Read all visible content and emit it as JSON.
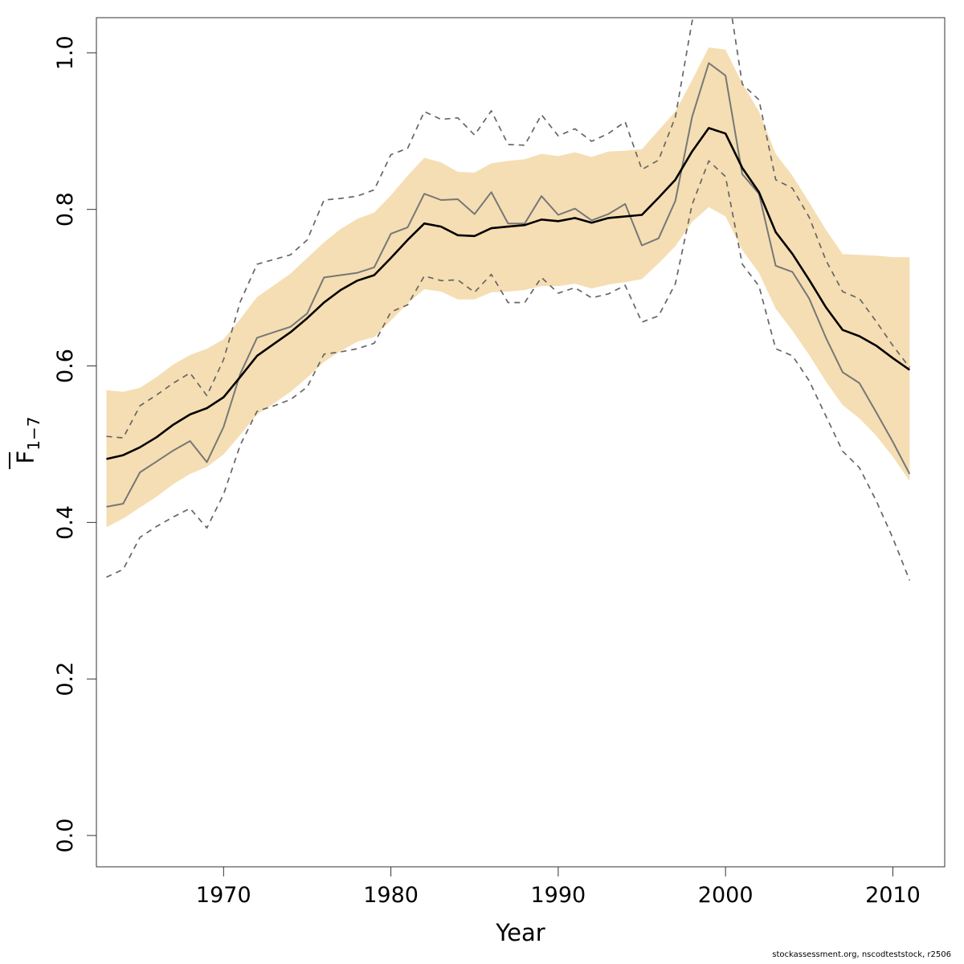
{
  "chart_data": {
    "type": "line",
    "title": "",
    "xlabel": "Year",
    "ylabel": {
      "main": "F",
      "sub": "1−7"
    },
    "xlim": [
      1962.4,
      2013.1
    ],
    "ylim": [
      -0.04,
      1.045
    ],
    "xticks": [
      1970,
      1980,
      1990,
      2000,
      2010
    ],
    "yticks": [
      0.0,
      0.2,
      0.4,
      0.6,
      0.8,
      1.0
    ],
    "xtick_labels": [
      "1970",
      "1980",
      "1990",
      "2000",
      "2010"
    ],
    "ytick_labels": [
      "0.0",
      "0.2",
      "0.4",
      "0.6",
      "0.8",
      "1.0"
    ],
    "grid": false,
    "colors": {
      "band": "#f5deb3",
      "estimate": "#000000",
      "retro": "#777777",
      "retro_ci": "#666666"
    },
    "x": [
      1963,
      1964,
      1965,
      1966,
      1967,
      1968,
      1969,
      1970,
      1971,
      1972,
      1973,
      1974,
      1975,
      1976,
      1977,
      1978,
      1979,
      1980,
      1981,
      1982,
      1983,
      1984,
      1985,
      1986,
      1987,
      1988,
      1989,
      1990,
      1991,
      1992,
      1993,
      1994,
      1995,
      1996,
      1997,
      1998,
      1999,
      2000,
      2001,
      2002,
      2003,
      2004,
      2005,
      2006,
      2007,
      2008,
      2009,
      2010,
      2011
    ],
    "series": [
      {
        "role": "estimate",
        "values": [
          0.481,
          0.486,
          0.496,
          0.509,
          0.525,
          0.538,
          0.546,
          0.56,
          0.586,
          0.613,
          0.628,
          0.643,
          0.661,
          0.681,
          0.697,
          0.709,
          0.716,
          0.738,
          0.761,
          0.782,
          0.778,
          0.767,
          0.766,
          0.776,
          0.778,
          0.78,
          0.787,
          0.785,
          0.789,
          0.783,
          0.789,
          0.791,
          0.793,
          0.815,
          0.838,
          0.874,
          0.904,
          0.897,
          0.853,
          0.822,
          0.771,
          0.743,
          0.71,
          0.675,
          0.646,
          0.638,
          0.626,
          0.61,
          0.595
        ]
      },
      {
        "role": "ci_upper",
        "values": [
          0.569,
          0.567,
          0.572,
          0.586,
          0.602,
          0.614,
          0.622,
          0.634,
          0.66,
          0.688,
          0.703,
          0.718,
          0.738,
          0.758,
          0.775,
          0.788,
          0.796,
          0.818,
          0.843,
          0.866,
          0.86,
          0.848,
          0.847,
          0.859,
          0.862,
          0.864,
          0.871,
          0.868,
          0.873,
          0.867,
          0.874,
          0.875,
          0.877,
          0.901,
          0.925,
          0.965,
          1.007,
          1.004,
          0.961,
          0.925,
          0.871,
          0.843,
          0.809,
          0.774,
          0.743,
          0.742,
          0.741,
          0.739,
          0.739
        ]
      },
      {
        "role": "ci_lower",
        "values": [
          0.394,
          0.405,
          0.419,
          0.433,
          0.449,
          0.462,
          0.471,
          0.487,
          0.512,
          0.538,
          0.552,
          0.567,
          0.585,
          0.605,
          0.619,
          0.631,
          0.637,
          0.658,
          0.68,
          0.698,
          0.695,
          0.685,
          0.685,
          0.694,
          0.695,
          0.697,
          0.702,
          0.702,
          0.705,
          0.699,
          0.704,
          0.707,
          0.711,
          0.731,
          0.753,
          0.784,
          0.803,
          0.791,
          0.748,
          0.719,
          0.673,
          0.645,
          0.614,
          0.58,
          0.55,
          0.533,
          0.511,
          0.484,
          0.453
        ]
      },
      {
        "role": "retro",
        "values": [
          0.42,
          0.424,
          0.464,
          0.478,
          0.492,
          0.504,
          0.477,
          0.522,
          0.59,
          0.636,
          0.643,
          0.65,
          0.667,
          0.713,
          0.716,
          0.719,
          0.726,
          0.769,
          0.777,
          0.82,
          0.812,
          0.813,
          0.794,
          0.822,
          0.782,
          0.782,
          0.817,
          0.793,
          0.801,
          0.786,
          0.794,
          0.807,
          0.754,
          0.763,
          0.811,
          0.918,
          0.987,
          0.971,
          0.845,
          0.82,
          0.728,
          0.72,
          0.686,
          0.636,
          0.592,
          0.578,
          0.541,
          0.503,
          0.462
        ]
      },
      {
        "role": "retro_ci_upper",
        "values": [
          0.51,
          0.508,
          0.549,
          0.563,
          0.578,
          0.591,
          0.562,
          0.608,
          0.682,
          0.73,
          0.736,
          0.742,
          0.761,
          0.812,
          0.814,
          0.817,
          0.825,
          0.87,
          0.878,
          0.925,
          0.915,
          0.917,
          0.895,
          0.926,
          0.883,
          0.882,
          0.921,
          0.894,
          0.903,
          0.887,
          0.897,
          0.912,
          0.851,
          0.863,
          0.918,
          1.04,
          1.12,
          1.1,
          0.96,
          0.94,
          0.838,
          0.827,
          0.79,
          0.735,
          0.695,
          0.686,
          0.657,
          0.626,
          0.598
        ]
      },
      {
        "role": "retro_ci_lower",
        "values": [
          0.33,
          0.34,
          0.381,
          0.395,
          0.407,
          0.418,
          0.393,
          0.436,
          0.499,
          0.542,
          0.549,
          0.557,
          0.573,
          0.615,
          0.618,
          0.622,
          0.629,
          0.669,
          0.678,
          0.715,
          0.709,
          0.71,
          0.694,
          0.717,
          0.681,
          0.681,
          0.713,
          0.693,
          0.7,
          0.687,
          0.692,
          0.703,
          0.656,
          0.664,
          0.705,
          0.806,
          0.862,
          0.842,
          0.73,
          0.702,
          0.622,
          0.613,
          0.581,
          0.536,
          0.491,
          0.47,
          0.428,
          0.38,
          0.326
        ]
      }
    ]
  },
  "footer_text": "stockassessment.org, nscodteststock, r2506"
}
